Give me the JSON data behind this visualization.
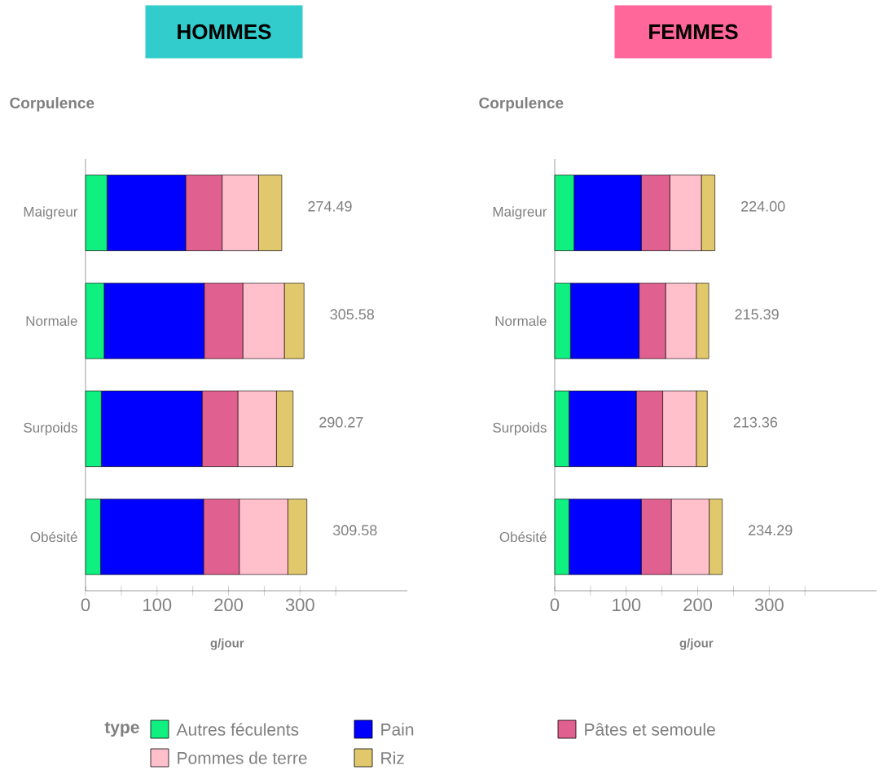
{
  "chart_data": [
    {
      "type": "bar",
      "orientation": "horizontal",
      "stacked": true,
      "title": "HOMMES",
      "ylabel": "Corpulence",
      "xlabel": "g/jour",
      "legend": "bottom",
      "legend_title": "type",
      "categories": [
        "Maigreur",
        "Normale",
        "Surpoids",
        "Obésité"
      ],
      "series": [
        {
          "name": "Autres féculents",
          "color": "#10f080",
          "values": [
            30,
            26,
            22,
            21
          ]
        },
        {
          "name": "Pain",
          "color": "#0000ff",
          "values": [
            110,
            140,
            141,
            144
          ]
        },
        {
          "name": "Pâtes et semoule",
          "color": "#e0608f",
          "values": [
            51,
            54,
            50,
            50
          ]
        },
        {
          "name": "Pommes de terre",
          "color": "#ffc0cc",
          "values": [
            51,
            58,
            54,
            68
          ]
        },
        {
          "name": "Riz",
          "color": "#e2c86c",
          "values": [
            32.49,
            27.58,
            23.27,
            26.58
          ]
        }
      ],
      "totals": [
        "274.49",
        "305.58",
        "290.27",
        "309.58"
      ],
      "xlim": [
        0,
        450
      ],
      "xticks": [
        0,
        {
          "value": 50,
          "label": null
        },
        100,
        {
          "value": 150,
          "label": null
        },
        200,
        {
          "value": 250,
          "label": null
        },
        300,
        {
          "value": 350,
          "label": null
        }
      ]
    },
    {
      "type": "bar",
      "orientation": "horizontal",
      "stacked": true,
      "title": "FEMMES",
      "ylabel": "Corpulence",
      "xlabel": "g/jour",
      "categories": [
        "Maigreur",
        "Normale",
        "Surpoids",
        "Obésité"
      ],
      "series": [
        {
          "color": "#10f080",
          "values": [
            27,
            22,
            20,
            20
          ]
        },
        {
          "color": "#0000ff",
          "values": [
            94,
            96,
            94,
            101
          ]
        },
        {
          "color": "#e0608f",
          "values": [
            40,
            37,
            37,
            42
          ]
        },
        {
          "color": "#ffc0cc",
          "values": [
            44,
            43,
            47,
            53
          ]
        },
        {
          "color": "#e2c86c",
          "values": [
            19,
            17.39,
            15.36,
            18.29
          ]
        }
      ],
      "totals": [
        "224.00",
        "215.39",
        "213.36",
        "234.29"
      ],
      "xlim": [
        0,
        450
      ],
      "xticks": [
        0,
        {
          "value": 50,
          "label": null
        },
        100,
        {
          "value": 150,
          "label": null
        },
        200,
        {
          "value": 250,
          "label": null
        },
        300,
        {
          "value": 350,
          "label": null
        }
      ]
    }
  ]
}
